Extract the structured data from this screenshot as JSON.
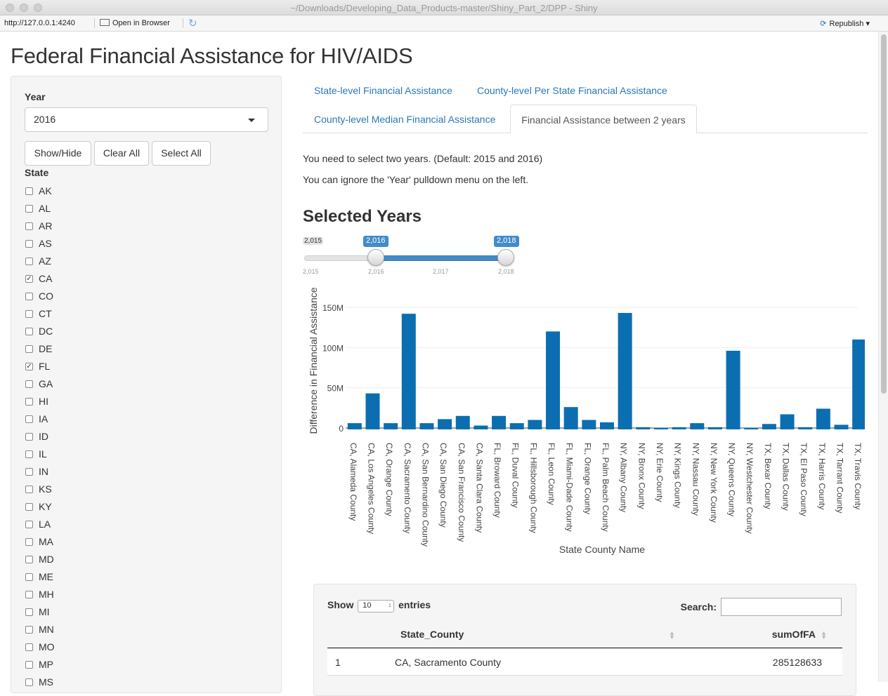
{
  "window": {
    "title": "~/Downloads/Developing_Data_Products-master/Shiny_Part_2/DPP - Shiny"
  },
  "toolbar": {
    "url": "http://127.0.0.1:4240",
    "open_in_browser": "Open in Browser",
    "republish": "Republish"
  },
  "page": {
    "title": "Federal Financial Assistance for HIV/AIDS"
  },
  "sidebar": {
    "year_label": "Year",
    "year_value": "2016",
    "buttons": {
      "show_hide": "Show/Hide",
      "clear_all": "Clear All",
      "select_all": "Select All"
    },
    "state_label": "State",
    "states": [
      {
        "code": "AK",
        "checked": false
      },
      {
        "code": "AL",
        "checked": false
      },
      {
        "code": "AR",
        "checked": false
      },
      {
        "code": "AS",
        "checked": false
      },
      {
        "code": "AZ",
        "checked": false
      },
      {
        "code": "CA",
        "checked": true
      },
      {
        "code": "CO",
        "checked": false
      },
      {
        "code": "CT",
        "checked": false
      },
      {
        "code": "DC",
        "checked": false
      },
      {
        "code": "DE",
        "checked": false
      },
      {
        "code": "FL",
        "checked": true
      },
      {
        "code": "GA",
        "checked": false
      },
      {
        "code": "HI",
        "checked": false
      },
      {
        "code": "IA",
        "checked": false
      },
      {
        "code": "ID",
        "checked": false
      },
      {
        "code": "IL",
        "checked": false
      },
      {
        "code": "IN",
        "checked": false
      },
      {
        "code": "KS",
        "checked": false
      },
      {
        "code": "KY",
        "checked": false
      },
      {
        "code": "LA",
        "checked": false
      },
      {
        "code": "MA",
        "checked": false
      },
      {
        "code": "MD",
        "checked": false
      },
      {
        "code": "ME",
        "checked": false
      },
      {
        "code": "MH",
        "checked": false
      },
      {
        "code": "MI",
        "checked": false
      },
      {
        "code": "MN",
        "checked": false
      },
      {
        "code": "MO",
        "checked": false
      },
      {
        "code": "MP",
        "checked": false
      },
      {
        "code": "MS",
        "checked": false
      }
    ]
  },
  "tabs": {
    "tab1": "State-level Financial Assistance",
    "tab2": "County-level Per State Financial Assistance",
    "tab3": "County-level Median Financial Assistance",
    "tab4": "Financial Assistance between 2 years"
  },
  "content": {
    "note1": "You need to select two years. (Default: 2015 and 2016)",
    "note2": "You can ignore the 'Year' pulldown menu on the left.",
    "selected_years_heading": "Selected Years"
  },
  "slider": {
    "min": 2015,
    "max": 2018,
    "from": 2016,
    "to": 2018,
    "min_label": "2,015",
    "from_label": "2,016",
    "to_label": "2,018",
    "ticks": [
      "2,015",
      "2,016",
      "2,017",
      "2,018"
    ]
  },
  "chart_data": {
    "type": "bar",
    "title": "",
    "xlabel": "State County Name",
    "ylabel": "Difference in Financial Assistance",
    "ylim": [
      0,
      160000000
    ],
    "yticks": [
      0,
      50000000,
      100000000,
      150000000
    ],
    "ytick_labels": [
      "0",
      "50M",
      "100M",
      "150M"
    ],
    "categories": [
      "CA, Alameda County",
      "CA, Los Angeles County",
      "CA, Orange County",
      "CA, Sacramento County",
      "CA, San Bernardino County",
      "CA, San Diego County",
      "CA, San Francisco County",
      "CA, Santa Clara County",
      "FL, Broward County",
      "FL, Duval County",
      "FL, Hillsborough County",
      "FL, Leon County",
      "FL, Miami-Dade County",
      "FL, Orange County",
      "FL, Palm Beach County",
      "NY, Albany County",
      "NY, Bronx County",
      "NY, Erie County",
      "NY, Kings County",
      "NY, Nassau County",
      "NY, New York County",
      "NY, Queens County",
      "NY, Westchester County",
      "TX, Bexar County",
      "TX, Dallas County",
      "TX, El Paso County",
      "TX, Harris County",
      "TX, Tarrant County",
      "TX, Travis County"
    ],
    "values": [
      6000000,
      43000000,
      6000000,
      142000000,
      6000000,
      11000000,
      15000000,
      3000000,
      15000000,
      6000000,
      10000000,
      120000000,
      26000000,
      10000000,
      7000000,
      143000000,
      1000000,
      0,
      1000000,
      6000000,
      1000000,
      96000000,
      0,
      5000000,
      17000000,
      1000000,
      24000000,
      4000000,
      110000000
    ],
    "color": "#0b6eb0"
  },
  "table": {
    "show_label": "Show",
    "entries_value": "10",
    "entries_label": "entries",
    "search_label": "Search:",
    "columns": [
      "State_County",
      "sumOfFA"
    ],
    "rows": [
      {
        "index": "1",
        "state_county": "CA, Sacramento County",
        "sum": "285128633"
      }
    ]
  }
}
